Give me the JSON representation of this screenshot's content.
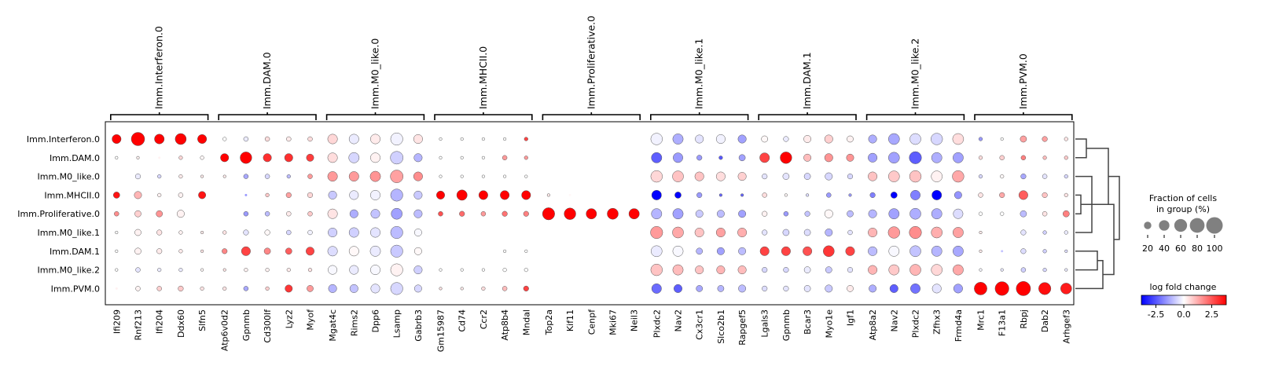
{
  "chart_data": {
    "type": "scatter",
    "subtype": "dotplot",
    "title": "",
    "xlabel": "",
    "ylabel": "",
    "rows": [
      "Imm.Interferon.0",
      "Imm.DAM.0",
      "Imm.M0_like.0",
      "Imm.MHCII.0",
      "Imm.Proliferative.0",
      "Imm.M0_like.1",
      "Imm.DAM.1",
      "Imm.M0_like.2",
      "Imm.PVM.0"
    ],
    "gene_groups": [
      {
        "name": "Imm.Interferon.0",
        "genes": [
          "Ifi209",
          "Rnf213",
          "Ifi204",
          "Ddx60",
          "Slfn5"
        ]
      },
      {
        "name": "Imm.DAM.0",
        "genes": [
          "Atp6v0d2",
          "Gpnmb",
          "Cd300lf",
          "Lyz2",
          "Myof"
        ]
      },
      {
        "name": "Imm.M0_like.0",
        "genes": [
          "Mgat4c",
          "Rims2",
          "Dpp6",
          "Lsamp",
          "Gabrb3"
        ]
      },
      {
        "name": "Imm.MHCII.0",
        "genes": [
          "Gm15987",
          "Cd74",
          "Ccr2",
          "Atp8b4",
          "Mndal"
        ]
      },
      {
        "name": "Imm.Proliferative.0",
        "genes": [
          "Top2a",
          "Kif11",
          "Cenpf",
          "Mki67",
          "Neil3"
        ]
      },
      {
        "name": "Imm.M0_like.1",
        "genes": [
          "Plxdc2",
          "Nav2",
          "Cx3cr1",
          "Slco2b1",
          "Rapgef5"
        ]
      },
      {
        "name": "Imm.DAM.1",
        "genes": [
          "Lgals3",
          "Gpnmb",
          "Bcar3",
          "Myo1e",
          "Igf1"
        ]
      },
      {
        "name": "Imm.M0_like.2",
        "genes": [
          "Atp8a2",
          "Nav2",
          "Plxdc2",
          "Zfhx3",
          "Frmd4a"
        ]
      },
      {
        "name": "Imm.PVM.0",
        "genes": [
          "Mrc1",
          "F13a1",
          "Rbpj",
          "Dab2",
          "Arhgef3"
        ]
      }
    ],
    "fraction": [
      [
        30,
        65,
        35,
        45,
        30,
        5,
        8,
        8,
        8,
        8,
        35,
        35,
        35,
        55,
        30,
        3,
        3,
        3,
        3,
        5,
        0,
        0,
        0,
        0,
        0,
        50,
        40,
        25,
        30,
        25,
        15,
        10,
        20,
        25,
        15,
        25,
        45,
        45,
        50,
        45,
        5,
        3,
        15,
        10,
        5
      ],
      [
        3,
        3,
        2,
        5,
        5,
        25,
        50,
        25,
        25,
        20,
        35,
        40,
        35,
        60,
        25,
        3,
        3,
        3,
        8,
        5,
        0,
        0,
        0,
        0,
        0,
        40,
        35,
        10,
        5,
        15,
        35,
        50,
        20,
        25,
        20,
        30,
        45,
        55,
        40,
        40,
        5,
        8,
        8,
        5,
        5
      ],
      [
        2,
        10,
        5,
        5,
        3,
        3,
        8,
        8,
        5,
        8,
        35,
        35,
        40,
        60,
        30,
        3,
        3,
        3,
        3,
        3,
        0,
        0,
        0,
        0,
        0,
        50,
        45,
        30,
        30,
        25,
        10,
        15,
        15,
        20,
        10,
        30,
        45,
        50,
        45,
        50,
        5,
        5,
        10,
        8,
        5
      ],
      [
        15,
        20,
        5,
        8,
        20,
        0,
        2,
        5,
        10,
        10,
        25,
        30,
        35,
        55,
        25,
        25,
        40,
        30,
        30,
        30,
        3,
        2,
        0,
        0,
        0,
        35,
        15,
        10,
        3,
        3,
        8,
        3,
        3,
        8,
        3,
        10,
        15,
        35,
        35,
        20,
        8,
        10,
        30,
        10,
        5
      ],
      [
        8,
        15,
        15,
        20,
        0,
        0,
        8,
        8,
        8,
        8,
        35,
        25,
        30,
        45,
        25,
        8,
        10,
        8,
        10,
        10,
        55,
        50,
        40,
        45,
        40,
        40,
        40,
        20,
        20,
        20,
        10,
        8,
        10,
        25,
        15,
        25,
        40,
        45,
        40,
        35,
        5,
        5,
        15,
        8,
        15
      ],
      [
        3,
        15,
        10,
        5,
        3,
        5,
        10,
        10,
        8,
        8,
        30,
        35,
        35,
        55,
        20,
        2,
        2,
        2,
        2,
        2,
        0,
        0,
        0,
        0,
        0,
        55,
        45,
        30,
        30,
        30,
        10,
        15,
        15,
        20,
        8,
        30,
        50,
        55,
        45,
        40,
        3,
        2,
        10,
        5,
        5
      ],
      [
        3,
        15,
        10,
        5,
        3,
        10,
        30,
        15,
        15,
        25,
        35,
        35,
        40,
        55,
        20,
        2,
        2,
        2,
        3,
        3,
        0,
        0,
        0,
        0,
        0,
        45,
        40,
        15,
        20,
        20,
        30,
        30,
        30,
        45,
        30,
        30,
        40,
        45,
        40,
        40,
        3,
        2,
        10,
        5,
        3
      ],
      [
        3,
        8,
        5,
        5,
        3,
        3,
        5,
        5,
        5,
        5,
        30,
        30,
        35,
        55,
        25,
        3,
        3,
        3,
        5,
        5,
        0,
        0,
        0,
        0,
        0,
        50,
        40,
        25,
        25,
        25,
        10,
        10,
        15,
        15,
        10,
        30,
        40,
        45,
        45,
        40,
        3,
        3,
        8,
        5,
        3
      ],
      [
        2,
        8,
        8,
        10,
        5,
        5,
        8,
        5,
        20,
        15,
        25,
        25,
        30,
        55,
        20,
        3,
        3,
        5,
        8,
        10,
        0,
        0,
        0,
        0,
        0,
        35,
        25,
        15,
        15,
        20,
        10,
        10,
        15,
        20,
        15,
        20,
        25,
        35,
        30,
        30,
        60,
        70,
        75,
        55,
        45
      ]
    ],
    "log_fold_change": [
      [
        3.8,
        3.8,
        3.8,
        3.8,
        3.8,
        0,
        -0.3,
        0.5,
        0.3,
        0.5,
        0.6,
        -0.3,
        0.3,
        -0.2,
        0.4,
        0,
        0,
        0,
        0,
        2.8,
        0,
        0,
        0,
        0,
        0,
        -0.2,
        -1.2,
        -0.4,
        -0.2,
        -1.4,
        0.1,
        -0.3,
        0.3,
        0.7,
        0.2,
        -1.2,
        -1.3,
        -0.5,
        -0.6,
        0.5,
        -1.5,
        0,
        1.4,
        1.4,
        0.4
      ],
      [
        0,
        0.2,
        0.2,
        0.6,
        0.1,
        3.8,
        3.8,
        3.1,
        3.1,
        2.9,
        0.5,
        -0.6,
        0.2,
        -0.7,
        -1.1,
        0,
        0,
        0,
        1.5,
        1.5,
        0,
        0,
        0,
        0,
        0,
        -2.4,
        -1.5,
        -1.5,
        -2.5,
        -1.4,
        2.8,
        3.8,
        1.0,
        1.6,
        1.6,
        -1.4,
        -1.4,
        -2.4,
        -1.2,
        -1.4,
        0.5,
        0.7,
        1.9,
        1.0,
        0.8
      ],
      [
        0,
        -0.3,
        -0.6,
        0.3,
        0.3,
        0.3,
        -1.3,
        -0.6,
        -1.0,
        1.5,
        1.5,
        1.5,
        1.6,
        1.4,
        1.7,
        0,
        0,
        0,
        0,
        0,
        0,
        0,
        0,
        0,
        0,
        0.6,
        0.9,
        0.9,
        0.5,
        0.7,
        -0.4,
        -0.4,
        -0.6,
        -0.6,
        -0.6,
        0.9,
        0.8,
        0.9,
        0.2,
        1.3,
        -0.6,
        0.1,
        -1.3,
        -0.4,
        -0.6
      ],
      [
        3.5,
        1.1,
        0.2,
        0.2,
        3.5,
        0,
        -1.5,
        0.8,
        1.4,
        0.6,
        -0.8,
        -0.3,
        -0.2,
        -1.1,
        -0.8,
        3.8,
        3.8,
        3.8,
        3.8,
        3.8,
        0.3,
        0.1,
        0,
        0,
        0,
        -3.8,
        -3.8,
        -1.5,
        -2.3,
        -2.3,
        0.5,
        0.1,
        -0.5,
        -1.5,
        -1.5,
        -1.9,
        -3.8,
        -1.9,
        -3.8,
        -1.6,
        0.4,
        1.3,
        2.4,
        0.9,
        0.4
      ],
      [
        1.7,
        0.7,
        1.6,
        0.2,
        0,
        0,
        -1.5,
        -1.0,
        0.3,
        0.8,
        0.4,
        -1.2,
        -0.9,
        -1.4,
        -1.0,
        2.6,
        2.2,
        1.5,
        2.1,
        1.9,
        3.8,
        3.8,
        3.8,
        3.8,
        3.8,
        -1.1,
        -1.4,
        -0.8,
        -1.0,
        -1.4,
        0.2,
        -1.5,
        -0.9,
        0.1,
        -1.0,
        -1.1,
        -1.4,
        -1.2,
        -1.2,
        -0.5,
        0,
        0,
        -1.0,
        0.4,
        1.9
      ],
      [
        0,
        0.2,
        0.4,
        0.2,
        0.3,
        0.4,
        -0.4,
        0.1,
        -0.6,
        -0.2,
        -0.7,
        -0.7,
        -0.4,
        -1.0,
        -0.1,
        0,
        0,
        0,
        0,
        0,
        0,
        0,
        0,
        0,
        0,
        1.5,
        1.3,
        0.9,
        1.4,
        1.2,
        -0.4,
        -0.6,
        -0.5,
        -1.1,
        -0.4,
        1.1,
        1.5,
        1.7,
        1.2,
        1.4,
        0.3,
        0,
        -0.4,
        -0.7,
        -0.3
      ],
      [
        0,
        0.2,
        0.3,
        0.3,
        0.4,
        1.8,
        2.8,
        1.8,
        2.4,
        2.8,
        -0.5,
        0.1,
        -0.3,
        -0.8,
        0.1,
        0,
        0,
        0,
        0,
        0,
        0,
        0,
        0,
        0,
        0,
        -0.3,
        -0.1,
        -1.1,
        -1.4,
        -1.0,
        2.8,
        2.8,
        2.6,
        3.0,
        2.8,
        -1.0,
        -0.1,
        -0.9,
        -1.1,
        -1.3,
        0.3,
        -0.9,
        -0.5,
        -0.7,
        -0.5
      ],
      [
        0,
        -0.4,
        -0.3,
        -0.3,
        0.1,
        0.4,
        0.2,
        0.2,
        0.3,
        0.4,
        -0.1,
        -0.3,
        -0.1,
        0.2,
        -0.7,
        0,
        0,
        0,
        0,
        0,
        0,
        0,
        0,
        0,
        0,
        0.9,
        1.0,
        0.9,
        1.1,
        1.0,
        -0.6,
        -0.6,
        -0.3,
        -0.8,
        -0.4,
        1.1,
        0.8,
        1.1,
        0.6,
        1.3,
        -0.1,
        -0.3,
        -0.7,
        -0.6,
        -0.3
      ],
      [
        0.2,
        0.2,
        0.7,
        0.8,
        0.4,
        0.4,
        -1.3,
        0.7,
        3.0,
        1.5,
        -1.1,
        -0.9,
        -0.4,
        -0.6,
        -0.6,
        0.4,
        0.3,
        0.5,
        1.0,
        2.8,
        0,
        0,
        0,
        0,
        0,
        -2.2,
        -2.4,
        -1.3,
        -1.1,
        -1.0,
        -0.5,
        -0.4,
        -0.4,
        -0.8,
        0.3,
        -1.2,
        -2.4,
        -2.1,
        -0.4,
        -1.4,
        3.8,
        3.8,
        3.8,
        3.6,
        3.4
      ]
    ],
    "colorbar": {
      "title": "log fold change",
      "ticks": [
        "-2.5",
        "0.0",
        "2.5"
      ],
      "range": [
        -3.8,
        3.8
      ],
      "colors": [
        "#0000ff",
        "#ffffff",
        "#ff0000"
      ]
    },
    "size_legend": {
      "title_line1": "Fraction of cells",
      "title_line2": "in group (%)",
      "ticks": [
        "20",
        "40",
        "60",
        "80",
        "100"
      ],
      "values": [
        20,
        40,
        60,
        80,
        100
      ]
    },
    "dendrogram": {
      "merges": [
        [
          3,
          4
        ],
        [
          0,
          1
        ],
        [
          2,
          5
        ],
        [
          6,
          7
        ],
        [
          12,
          8
        ],
        [
          9,
          10
        ],
        [
          11,
          13
        ],
        [
          14,
          15
        ]
      ]
    },
    "dot_edge_color": "#555555",
    "tree_color": "#444444"
  }
}
